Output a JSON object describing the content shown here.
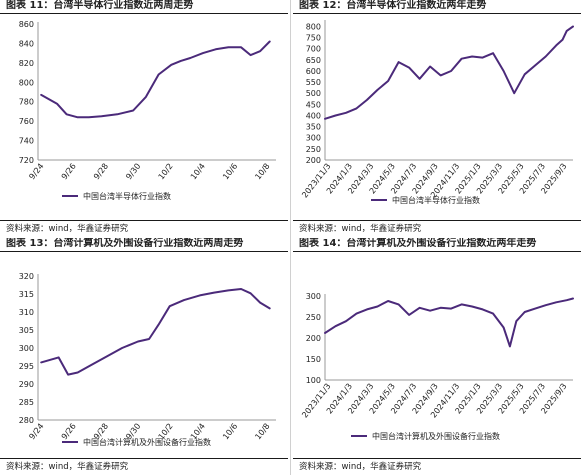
{
  "colors": {
    "line": "#4b2a7a",
    "axis": "#9a9a9a",
    "text": "#222222"
  },
  "panels": {
    "p11": {
      "title": "图表 11：台湾半导体行业指数近两周走势",
      "source": "资料来源：wind，华鑫证券研究"
    },
    "p12": {
      "title": "图表 12：台湾半导体行业指数近两年走势",
      "source": "资料来源：wind，华鑫证券研究"
    },
    "p13": {
      "title": "图表 13：台湾计算机及外围设备行业指数近两周走势",
      "source": "资料来源：wind，华鑫证券研究"
    },
    "p14": {
      "title": "图表 14：台湾计算机及外围设备行业指数近两年走势",
      "source": "资料来源：wind，华鑫证券研究"
    }
  },
  "chart_data": [
    {
      "id": "p11",
      "type": "line",
      "series_name": "中国台湾半导体行业指数",
      "x_tick_labels": [
        "9/24",
        "9/26",
        "9/28",
        "9/30",
        "10/2",
        "10/4",
        "10/6",
        "10/8"
      ],
      "yticks": [
        720,
        740,
        760,
        780,
        800,
        820,
        840,
        860
      ],
      "ylim": [
        720,
        860
      ],
      "xlim": [
        0,
        15
      ],
      "x": [
        0.2,
        1.2,
        1.8,
        2.5,
        3.2,
        4,
        5,
        6,
        6.8,
        7.6,
        8.4,
        9,
        9.6,
        10.4,
        11.2,
        12,
        12.8,
        13.4,
        14,
        14.6
      ],
      "y": [
        787,
        778,
        767,
        764,
        764,
        765,
        767,
        771,
        785,
        808,
        818,
        822,
        825,
        830,
        834,
        836,
        836,
        828,
        832,
        842
      ]
    },
    {
      "id": "p12",
      "type": "line",
      "series_name": "中国台湾半导体行业指数",
      "x_tick_labels": [
        "2023/11/3",
        "2024/1/3",
        "2024/3/3",
        "2024/5/3",
        "2024/7/3",
        "2024/9/3",
        "2024/11/3",
        "2025/1/3",
        "2025/3/3",
        "2025/5/3",
        "2025/7/3",
        "2025/9/3"
      ],
      "yticks": [
        200,
        250,
        300,
        350,
        400,
        450,
        500,
        550,
        600,
        650,
        700,
        750,
        800
      ],
      "ylim": [
        200,
        820
      ],
      "xlim": [
        0,
        23.6
      ],
      "x": [
        0,
        1,
        2,
        3,
        4,
        5,
        6,
        7,
        8,
        9,
        10,
        11,
        12,
        13,
        14,
        15,
        16,
        17,
        18,
        19,
        20,
        21,
        22,
        22.6,
        23,
        23.6
      ],
      "y": [
        385,
        400,
        412,
        432,
        470,
        515,
        555,
        640,
        615,
        565,
        620,
        580,
        600,
        655,
        665,
        660,
        680,
        600,
        500,
        585,
        625,
        665,
        715,
        740,
        780,
        800
      ]
    },
    {
      "id": "p13",
      "type": "line",
      "series_name": "中国台湾计算机及外围设备行业指数",
      "x_tick_labels": [
        "9/24",
        "9/26",
        "9/28",
        "9/30",
        "10/2",
        "10/4",
        "10/6",
        "10/8"
      ],
      "yticks": [
        280,
        285,
        290,
        295,
        300,
        305,
        310,
        315,
        320
      ],
      "ylim": [
        280,
        320
      ],
      "xlim": [
        0,
        15
      ],
      "x": [
        0.2,
        1.3,
        1.9,
        2.5,
        3.4,
        4.4,
        5.3,
        6.3,
        7,
        7.6,
        8.3,
        9.2,
        10.2,
        11.1,
        12,
        12.8,
        13.4,
        14,
        14.6
      ],
      "y": [
        296,
        297.4,
        292.6,
        293.2,
        295.4,
        297.8,
        300,
        301.8,
        302.5,
        306.5,
        311.6,
        313.3,
        314.6,
        315.4,
        316,
        316.4,
        315.2,
        312.6,
        311
      ]
    },
    {
      "id": "p14",
      "type": "line",
      "series_name": "中国台湾计算机及外围设备行业指数",
      "x_tick_labels": [
        "2023/11/3",
        "2024/1/3",
        "2024/3/3",
        "2024/5/3",
        "2024/7/3",
        "2024/9/3",
        "2024/11/3",
        "2025/1/3",
        "2025/3/3",
        "2025/5/3",
        "2025/7/3",
        "2025/9/3"
      ],
      "yticks": [
        100,
        150,
        200,
        250,
        300
      ],
      "ylim": [
        100,
        300
      ],
      "xlim": [
        0,
        23.6
      ],
      "x": [
        0,
        1,
        2,
        3,
        4,
        5,
        6,
        7,
        8,
        9,
        10,
        11,
        12,
        13,
        14,
        15,
        16,
        17,
        17.6,
        18.2,
        19,
        20,
        21,
        22,
        23,
        23.6
      ],
      "y": [
        212,
        228,
        240,
        258,
        268,
        275,
        288,
        280,
        255,
        272,
        265,
        272,
        270,
        280,
        275,
        268,
        258,
        225,
        180,
        240,
        262,
        270,
        278,
        285,
        290,
        294
      ]
    }
  ]
}
